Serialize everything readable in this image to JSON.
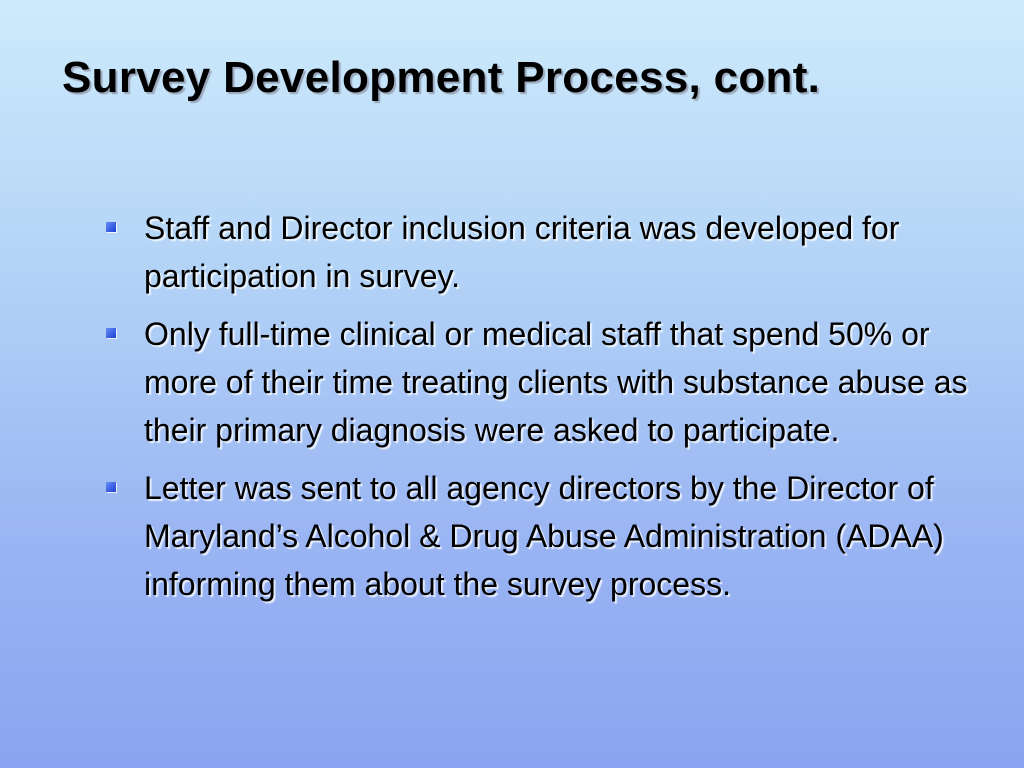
{
  "slide": {
    "title": "Survey Development Process, cont.",
    "bullets": [
      {
        "text": "Staff and Director inclusion criteria was developed for participation in survey."
      },
      {
        "text": "Only full-time clinical or medical staff that spend 50% or more of their time treating clients with substance abuse as their primary diagnosis were asked to participate."
      },
      {
        "text": "Letter was sent to all agency directors by the Director of Maryland’s Alcohol & Drug Abuse Administration (ADAA) informing them about the survey process."
      }
    ],
    "bullet_icon": "square-bullet-icon",
    "colors": {
      "bullet": "#2f55e0",
      "background_top": "#cdebfb",
      "background_bottom": "#8aa4f1",
      "text": "#000000"
    }
  }
}
